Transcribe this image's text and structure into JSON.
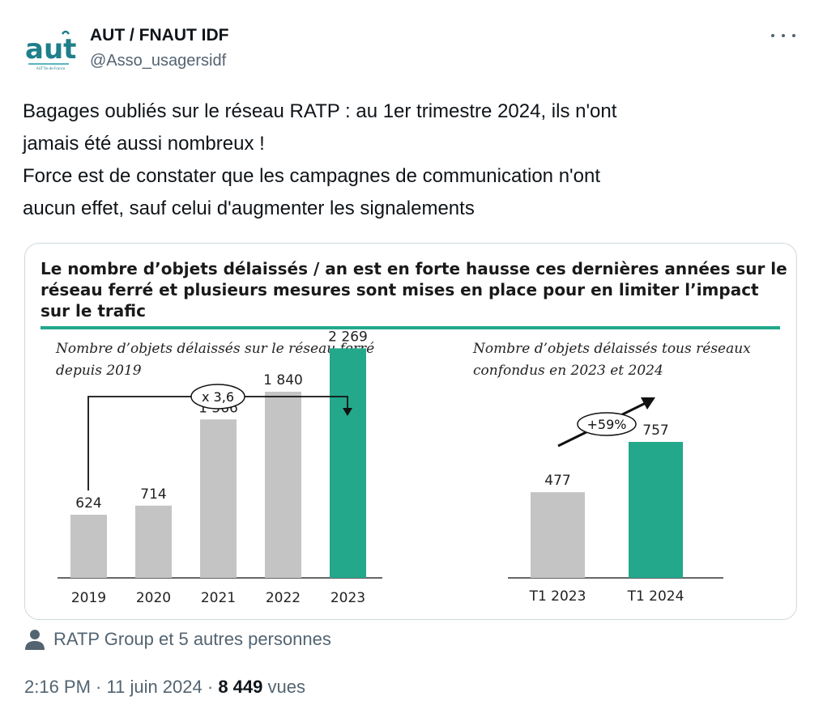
{
  "tweet": {
    "author": {
      "display_name": "AUT / FNAUT IDF",
      "handle": "@Asso_usagersidf",
      "avatar_logo_text": "aut",
      "avatar_logo_subtext": "AUT Île-de-France"
    },
    "more_icon": "ellipsis-icon",
    "text_lines": [
      "Bagages oubliés sur le réseau RATP : au 1er trimestre 2024, ils n'ont",
      "jamais été aussi nombreux !",
      "Force est de constater que les campagnes de communication n'ont",
      "aucun effet, sauf celui d'augmenter les signalements"
    ],
    "liked_by": {
      "icon": "person-icon",
      "text": "RATP Group et 5 autres personnes"
    },
    "meta": {
      "time": "2:16 PM",
      "sep1": " · ",
      "date": "11 juin 2024",
      "sep2": " · ",
      "views": "8 449",
      "views_label": " vues"
    }
  },
  "figure": {
    "title_lines": [
      "Le nombre d’objets délaissés / an est en forte hausse ces dernières années sur le",
      "réseau ferré et plusieurs mesures sont mises en place pour en limiter l’impact",
      "sur le trafic"
    ],
    "accent_color": "#23a88c",
    "bar_grey": "#c4c4c4"
  },
  "chart_data": [
    {
      "type": "bar",
      "subtitle_lines": [
        "Nombre d’objets délaissés sur le réseau ferré",
        "depuis 2019"
      ],
      "categories": [
        "2019",
        "2020",
        "2021",
        "2022",
        "2023"
      ],
      "values": [
        624,
        714,
        1566,
        1840,
        2269
      ],
      "value_labels": [
        "624",
        "714",
        "1 566",
        "1 840",
        "2 269"
      ],
      "highlight_index": 4,
      "annotation": "x 3,6",
      "ylim": [
        0,
        2400
      ],
      "grid": false
    },
    {
      "type": "bar",
      "subtitle_lines": [
        "Nombre d’objets délaissés tous réseaux",
        "confondus en 2023 et 2024"
      ],
      "categories": [
        "T1 2023",
        "T1 2024"
      ],
      "values": [
        477,
        757
      ],
      "value_labels": [
        "477",
        "757"
      ],
      "highlight_index": 1,
      "annotation": "+59%",
      "ylim": [
        0,
        800
      ],
      "grid": false
    }
  ]
}
